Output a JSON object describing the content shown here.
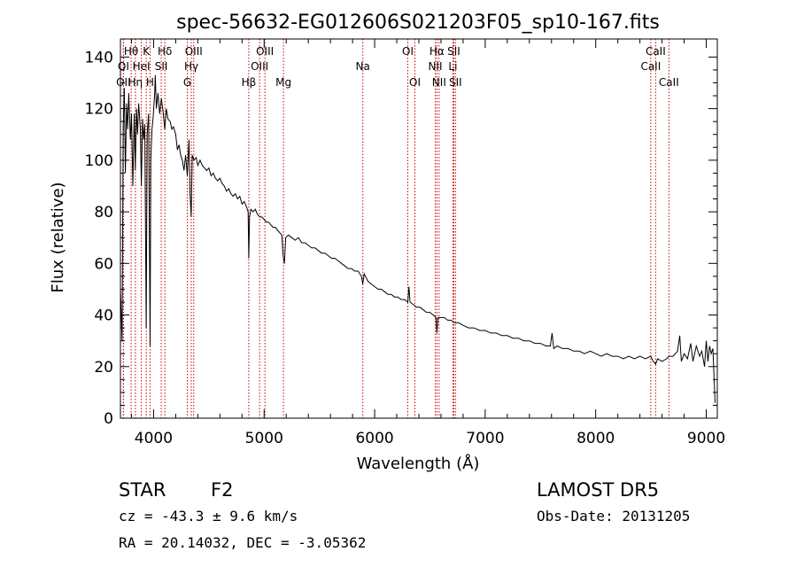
{
  "chart_data": {
    "type": "line",
    "title": "spec-56632-EG012606S021203F05_sp10-167.fits",
    "xlabel": "Wavelength (Å)",
    "ylabel": "Flux (relative)",
    "xlim": [
      3700,
      9100
    ],
    "ylim": [
      0,
      147
    ],
    "xticks": [
      4000,
      5000,
      6000,
      7000,
      8000,
      9000
    ],
    "yticks": [
      0,
      20,
      40,
      60,
      80,
      100,
      120,
      140
    ],
    "grid": false,
    "line_color": "#000000",
    "marker_color": "#cc0000",
    "series": [
      {
        "points": [
          [
            3700,
            50
          ],
          [
            3715,
            30
          ],
          [
            3725,
            112
          ],
          [
            3735,
            128
          ],
          [
            3745,
            95
          ],
          [
            3755,
            122
          ],
          [
            3765,
            112
          ],
          [
            3775,
            126
          ],
          [
            3790,
            108
          ],
          [
            3800,
            118
          ],
          [
            3812,
            90
          ],
          [
            3825,
            118
          ],
          [
            3835,
            96
          ],
          [
            3845,
            120
          ],
          [
            3855,
            110
          ],
          [
            3865,
            122
          ],
          [
            3880,
            112
          ],
          [
            3889,
            90
          ],
          [
            3900,
            116
          ],
          [
            3910,
            108
          ],
          [
            3920,
            114
          ],
          [
            3933,
            35
          ],
          [
            3942,
            110
          ],
          [
            3955,
            118
          ],
          [
            3968,
            28
          ],
          [
            3975,
            100
          ],
          [
            3985,
            112
          ],
          [
            3995,
            116
          ],
          [
            4010,
            126
          ],
          [
            4015,
            133
          ],
          [
            4025,
            120
          ],
          [
            4040,
            126
          ],
          [
            4055,
            118
          ],
          [
            4070,
            124
          ],
          [
            4085,
            119
          ],
          [
            4101,
            112
          ],
          [
            4115,
            120
          ],
          [
            4130,
            116
          ],
          [
            4150,
            115
          ],
          [
            4165,
            112
          ],
          [
            4180,
            113
          ],
          [
            4200,
            110
          ],
          [
            4215,
            104
          ],
          [
            4230,
            106
          ],
          [
            4245,
            102
          ],
          [
            4260,
            100
          ],
          [
            4275,
            96
          ],
          [
            4290,
            102
          ],
          [
            4305,
            94
          ],
          [
            4320,
            108
          ],
          [
            4330,
            87
          ],
          [
            4340,
            78
          ],
          [
            4350,
            102
          ],
          [
            4365,
            100
          ],
          [
            4385,
            101
          ],
          [
            4400,
            98
          ],
          [
            4420,
            100
          ],
          [
            4440,
            98
          ],
          [
            4460,
            97
          ],
          [
            4480,
            96
          ],
          [
            4500,
            97
          ],
          [
            4520,
            94
          ],
          [
            4540,
            95
          ],
          [
            4560,
            93
          ],
          [
            4580,
            92
          ],
          [
            4600,
            93
          ],
          [
            4620,
            91
          ],
          [
            4640,
            90
          ],
          [
            4660,
            88
          ],
          [
            4680,
            89
          ],
          [
            4700,
            87
          ],
          [
            4720,
            86
          ],
          [
            4740,
            87
          ],
          [
            4760,
            85
          ],
          [
            4780,
            86
          ],
          [
            4800,
            83
          ],
          [
            4820,
            84
          ],
          [
            4840,
            82
          ],
          [
            4855,
            80
          ],
          [
            4861,
            62
          ],
          [
            4868,
            78
          ],
          [
            4880,
            81
          ],
          [
            4900,
            80
          ],
          [
            4920,
            81
          ],
          [
            4940,
            79
          ],
          [
            4960,
            78
          ],
          [
            4980,
            78
          ],
          [
            5000,
            77
          ],
          [
            5020,
            76
          ],
          [
            5040,
            76
          ],
          [
            5060,
            75
          ],
          [
            5080,
            74
          ],
          [
            5100,
            74
          ],
          [
            5120,
            73
          ],
          [
            5140,
            72
          ],
          [
            5160,
            71
          ],
          [
            5172,
            63
          ],
          [
            5184,
            60
          ],
          [
            5195,
            70
          ],
          [
            5220,
            71
          ],
          [
            5250,
            70
          ],
          [
            5280,
            69
          ],
          [
            5310,
            70
          ],
          [
            5340,
            68
          ],
          [
            5370,
            68
          ],
          [
            5400,
            67
          ],
          [
            5430,
            66
          ],
          [
            5460,
            66
          ],
          [
            5490,
            65
          ],
          [
            5520,
            64
          ],
          [
            5550,
            64
          ],
          [
            5580,
            63
          ],
          [
            5610,
            62
          ],
          [
            5640,
            62
          ],
          [
            5670,
            61
          ],
          [
            5700,
            60
          ],
          [
            5730,
            59
          ],
          [
            5760,
            58
          ],
          [
            5790,
            58
          ],
          [
            5820,
            57
          ],
          [
            5850,
            57
          ],
          [
            5880,
            55
          ],
          [
            5893,
            52
          ],
          [
            5905,
            56
          ],
          [
            5940,
            53
          ],
          [
            5970,
            52
          ],
          [
            6000,
            51
          ],
          [
            6030,
            50
          ],
          [
            6060,
            50
          ],
          [
            6090,
            49
          ],
          [
            6120,
            48
          ],
          [
            6150,
            48
          ],
          [
            6180,
            47
          ],
          [
            6210,
            47
          ],
          [
            6240,
            46
          ],
          [
            6270,
            46
          ],
          [
            6300,
            45
          ],
          [
            6310,
            51
          ],
          [
            6320,
            45
          ],
          [
            6350,
            44
          ],
          [
            6380,
            43
          ],
          [
            6410,
            43
          ],
          [
            6440,
            42
          ],
          [
            6470,
            41
          ],
          [
            6500,
            41
          ],
          [
            6530,
            40
          ],
          [
            6555,
            39
          ],
          [
            6563,
            33
          ],
          [
            6575,
            39
          ],
          [
            6600,
            39
          ],
          [
            6630,
            39
          ],
          [
            6660,
            38
          ],
          [
            6690,
            38
          ],
          [
            6720,
            37
          ],
          [
            6760,
            37
          ],
          [
            6800,
            36
          ],
          [
            6850,
            35
          ],
          [
            6900,
            35
          ],
          [
            6950,
            34
          ],
          [
            7000,
            34
          ],
          [
            7050,
            33
          ],
          [
            7100,
            33
          ],
          [
            7150,
            32
          ],
          [
            7200,
            32
          ],
          [
            7250,
            31
          ],
          [
            7300,
            31
          ],
          [
            7350,
            30
          ],
          [
            7400,
            30
          ],
          [
            7450,
            29
          ],
          [
            7500,
            29
          ],
          [
            7550,
            28
          ],
          [
            7590,
            28
          ],
          [
            7605,
            33
          ],
          [
            7620,
            27
          ],
          [
            7650,
            28
          ],
          [
            7700,
            27
          ],
          [
            7750,
            27
          ],
          [
            7800,
            26
          ],
          [
            7850,
            26
          ],
          [
            7900,
            25
          ],
          [
            7950,
            26
          ],
          [
            8000,
            25
          ],
          [
            8050,
            24
          ],
          [
            8100,
            25
          ],
          [
            8150,
            24
          ],
          [
            8200,
            24
          ],
          [
            8250,
            23
          ],
          [
            8300,
            24
          ],
          [
            8350,
            23
          ],
          [
            8400,
            24
          ],
          [
            8450,
            23
          ],
          [
            8498,
            24
          ],
          [
            8520,
            22
          ],
          [
            8542,
            21
          ],
          [
            8560,
            23
          ],
          [
            8600,
            22
          ],
          [
            8640,
            23
          ],
          [
            8662,
            24
          ],
          [
            8700,
            24
          ],
          [
            8740,
            26
          ],
          [
            8760,
            32
          ],
          [
            8775,
            22
          ],
          [
            8800,
            25
          ],
          [
            8830,
            23
          ],
          [
            8860,
            29
          ],
          [
            8880,
            22
          ],
          [
            8910,
            28
          ],
          [
            8940,
            24
          ],
          [
            8960,
            26
          ],
          [
            8985,
            20
          ],
          [
            9000,
            30
          ],
          [
            9015,
            22
          ],
          [
            9030,
            28
          ],
          [
            9045,
            25
          ],
          [
            9060,
            27
          ],
          [
            9080,
            6
          ]
        ]
      }
    ],
    "lines": [
      {
        "label": "Hθ",
        "wavelength": 3797,
        "row": 1
      },
      {
        "label": "OI",
        "wavelength": 3727,
        "row": 2
      },
      {
        "label": "OII",
        "wavelength": 3727,
        "row": 3
      },
      {
        "label": "Hη",
        "wavelength": 3835,
        "row": 3
      },
      {
        "label": "K",
        "wavelength": 3934,
        "row": 1
      },
      {
        "label": "HeI",
        "wavelength": 3889,
        "row": 2
      },
      {
        "label": "H",
        "wavelength": 3968,
        "row": 3
      },
      {
        "label": "Hδ",
        "wavelength": 4102,
        "row": 1
      },
      {
        "label": "SII",
        "wavelength": 4069,
        "row": 2
      },
      {
        "label": "OIII",
        "wavelength": 4363,
        "row": 1
      },
      {
        "label": "Hγ",
        "wavelength": 4341,
        "row": 2
      },
      {
        "label": "G",
        "wavelength": 4305,
        "row": 3
      },
      {
        "label": "Hβ",
        "wavelength": 4861,
        "row": 3
      },
      {
        "label": "OIII",
        "wavelength": 5007,
        "row": 1
      },
      {
        "label": "OIII",
        "wavelength": 4959,
        "row": 2
      },
      {
        "label": "Mg",
        "wavelength": 5175,
        "row": 3
      },
      {
        "label": "Na",
        "wavelength": 5893,
        "row": 2
      },
      {
        "label": "OI",
        "wavelength": 6300,
        "row": 1
      },
      {
        "label": "OI",
        "wavelength": 6364,
        "row": 3
      },
      {
        "label": "Hα",
        "wavelength": 6563,
        "row": 1
      },
      {
        "label": "SII",
        "wavelength": 6716,
        "row": 1
      },
      {
        "label": "NII",
        "wavelength": 6548,
        "row": 2
      },
      {
        "label": "Li",
        "wavelength": 6708,
        "row": 2
      },
      {
        "label": "NII",
        "wavelength": 6583,
        "row": 3
      },
      {
        "label": "SII",
        "wavelength": 6731,
        "row": 3
      },
      {
        "label": "CaII",
        "wavelength": 8542,
        "row": 1
      },
      {
        "label": "CaII",
        "wavelength": 8498,
        "row": 2
      },
      {
        "label": "CaII",
        "wavelength": 8662,
        "row": 3
      }
    ]
  },
  "info": {
    "object_class": "STAR",
    "subclass": "F2",
    "survey": "LAMOST DR5",
    "cz_line": "cz = -43.3 ± 9.6 km/s",
    "obs_date": "Obs-Date: 20131205",
    "coords": "RA =  20.14032, DEC =  -3.05362"
  }
}
